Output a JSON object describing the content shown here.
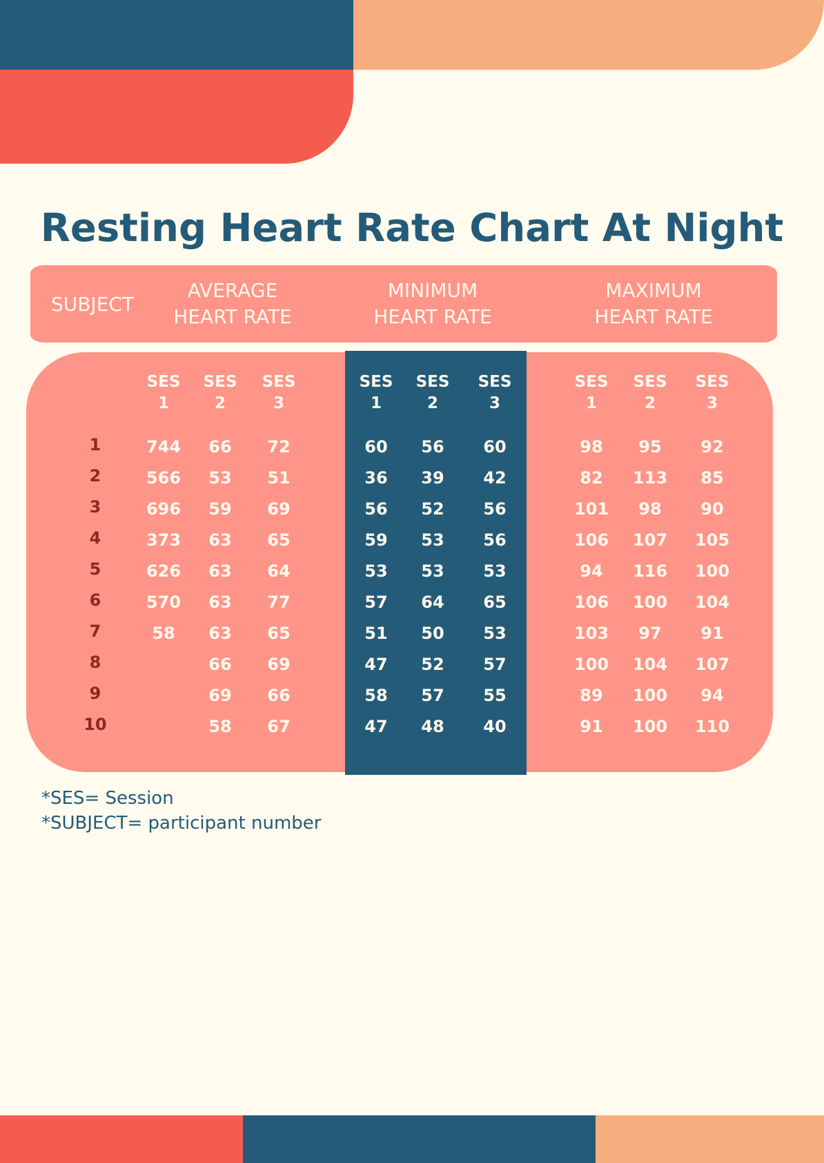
{
  "title": "Resting Heart Rate Chart At Night",
  "colors": {
    "background": "#fffbef",
    "navy": "#245b78",
    "coral": "#f45d4e",
    "peach": "#f7ad7e",
    "salmon_panel": "#ff9588",
    "subject_text": "#8c2a22"
  },
  "headers": {
    "subject": "SUBJECT",
    "average": [
      "AVERAGE",
      "HEART RATE"
    ],
    "minimum": [
      "MINIMUM",
      "HEART RATE"
    ],
    "maximum": [
      "MAXIMUM",
      "HEART RATE"
    ]
  },
  "session_labels": [
    [
      "SES",
      "1"
    ],
    [
      "SES",
      "2"
    ],
    [
      "SES",
      "3"
    ],
    [
      "SES",
      "1"
    ],
    [
      "SES",
      "2"
    ],
    [
      "SES",
      "3"
    ],
    [
      "SES",
      "1"
    ],
    [
      "SES",
      "2"
    ],
    [
      "SES",
      "3"
    ]
  ],
  "rows": [
    {
      "subject": "1",
      "average": [
        "744",
        "66",
        "72"
      ],
      "minimum": [
        "60",
        "56",
        "60"
      ],
      "maximum": [
        "98",
        "95",
        "92"
      ]
    },
    {
      "subject": "2",
      "average": [
        "566",
        "53",
        "51"
      ],
      "minimum": [
        "36",
        "39",
        "42"
      ],
      "maximum": [
        "82",
        "113",
        "85"
      ]
    },
    {
      "subject": "3",
      "average": [
        "696",
        "59",
        "69"
      ],
      "minimum": [
        "56",
        "52",
        "56"
      ],
      "maximum": [
        "101",
        "98",
        "90"
      ]
    },
    {
      "subject": "4",
      "average": [
        "373",
        "63",
        "65"
      ],
      "minimum": [
        "59",
        "53",
        "56"
      ],
      "maximum": [
        "106",
        "107",
        "105"
      ]
    },
    {
      "subject": "5",
      "average": [
        "626",
        "63",
        "64"
      ],
      "minimum": [
        "53",
        "53",
        "53"
      ],
      "maximum": [
        "94",
        "116",
        "100"
      ]
    },
    {
      "subject": "6",
      "average": [
        "570",
        "63",
        "77"
      ],
      "minimum": [
        "57",
        "64",
        "65"
      ],
      "maximum": [
        "106",
        "100",
        "104"
      ]
    },
    {
      "subject": "7",
      "average": [
        "58",
        "63",
        "65"
      ],
      "minimum": [
        "51",
        "50",
        "53"
      ],
      "maximum": [
        "103",
        "97",
        "91"
      ]
    },
    {
      "subject": "8",
      "average": [
        "",
        "66",
        "69"
      ],
      "minimum": [
        "47",
        "52",
        "57"
      ],
      "maximum": [
        "100",
        "104",
        "107"
      ]
    },
    {
      "subject": "9",
      "average": [
        "",
        "69",
        "66"
      ],
      "minimum": [
        "58",
        "57",
        "55"
      ],
      "maximum": [
        "89",
        "100",
        "94"
      ]
    },
    {
      "subject": "10",
      "average": [
        "",
        "58",
        "67"
      ],
      "minimum": [
        "47",
        "48",
        "40"
      ],
      "maximum": [
        "91",
        "100",
        "110"
      ]
    }
  ],
  "notes": [
    "*SES= Session",
    "*SUBJECT= participant number"
  ]
}
